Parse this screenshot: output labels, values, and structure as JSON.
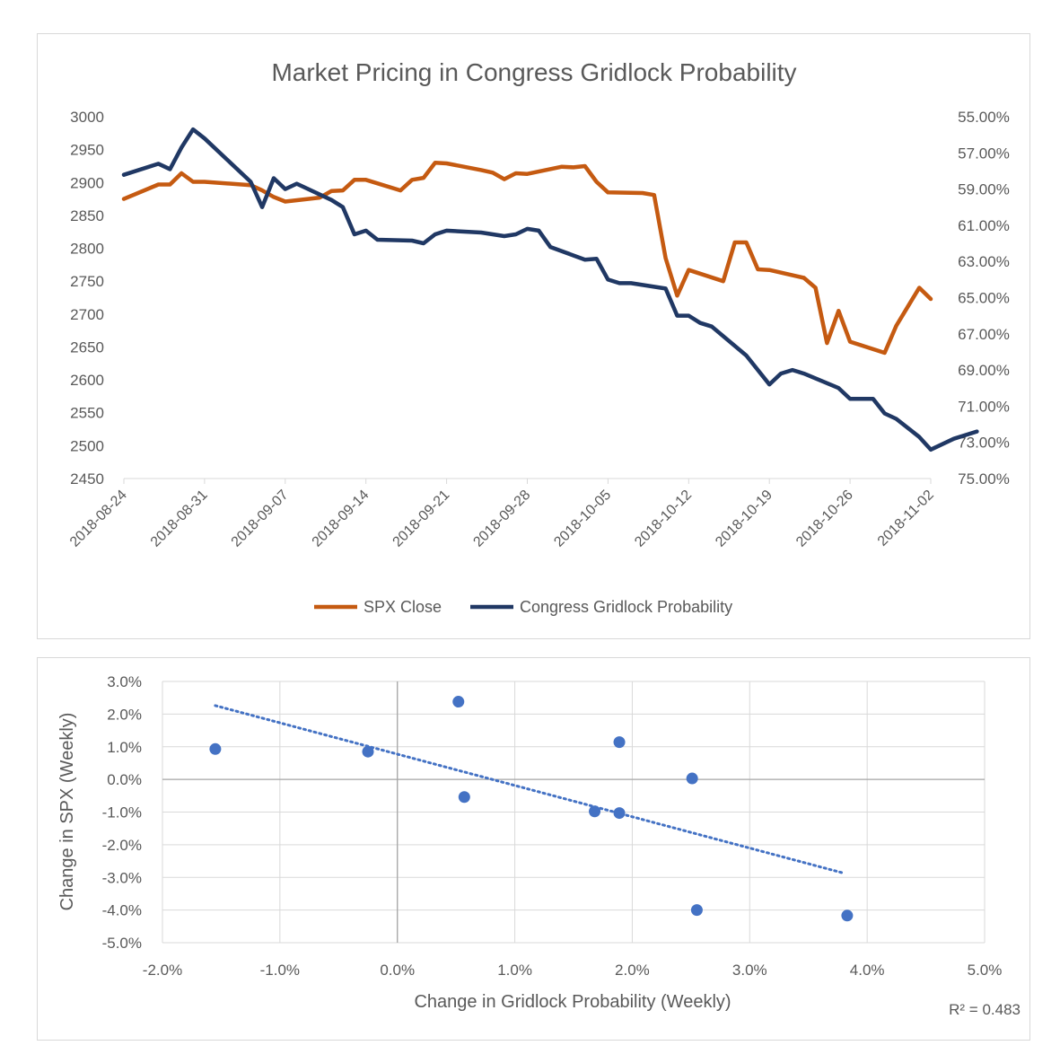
{
  "chart_data": [
    {
      "type": "line",
      "title": "Market Pricing in Congress Gridlock Probability",
      "x_ticks": [
        "2018-08-24",
        "2018-08-31",
        "2018-09-07",
        "2018-09-14",
        "2018-09-21",
        "2018-09-28",
        "2018-10-05",
        "2018-10-12",
        "2018-10-19",
        "2018-10-26",
        "2018-11-02"
      ],
      "y_left": {
        "min": 2450,
        "max": 3000,
        "step": 50,
        "ticks": [
          "3000",
          "2950",
          "2900",
          "2850",
          "2800",
          "2750",
          "2700",
          "2650",
          "2600",
          "2550",
          "2500",
          "2450"
        ]
      },
      "y_right": {
        "min": 0.55,
        "max": 0.75,
        "inverted": true,
        "ticks": [
          "55.00%",
          "57.00%",
          "59.00%",
          "61.00%",
          "63.00%",
          "65.00%",
          "67.00%",
          "69.00%",
          "71.00%",
          "73.00%",
          "75.00%"
        ]
      },
      "legend_position": "bottom",
      "series": [
        {
          "name": "SPX Close",
          "axis": "left",
          "color": "#C55A11",
          "points": [
            [
              "2018-08-24",
              2875
            ],
            [
              "2018-08-27",
              2897
            ],
            [
              "2018-08-28",
              2897
            ],
            [
              "2018-08-29",
              2914
            ],
            [
              "2018-08-30",
              2901
            ],
            [
              "2018-08-31",
              2901
            ],
            [
              "2018-09-04",
              2896
            ],
            [
              "2018-09-05",
              2888
            ],
            [
              "2018-09-06",
              2878
            ],
            [
              "2018-09-07",
              2871
            ],
            [
              "2018-09-10",
              2877
            ],
            [
              "2018-09-11",
              2887
            ],
            [
              "2018-09-12",
              2888
            ],
            [
              "2018-09-13",
              2904
            ],
            [
              "2018-09-14",
              2904
            ],
            [
              "2018-09-17",
              2888
            ],
            [
              "2018-09-18",
              2904
            ],
            [
              "2018-09-19",
              2907
            ],
            [
              "2018-09-20",
              2930
            ],
            [
              "2018-09-21",
              2929
            ],
            [
              "2018-09-24",
              2919
            ],
            [
              "2018-09-25",
              2915
            ],
            [
              "2018-09-26",
              2905
            ],
            [
              "2018-09-27",
              2914
            ],
            [
              "2018-09-28",
              2913
            ],
            [
              "2018-10-01",
              2924
            ],
            [
              "2018-10-02",
              2923
            ],
            [
              "2018-10-03",
              2925
            ],
            [
              "2018-10-04",
              2901
            ],
            [
              "2018-10-05",
              2885
            ],
            [
              "2018-10-08",
              2884
            ],
            [
              "2018-10-09",
              2881
            ],
            [
              "2018-10-10",
              2785
            ],
            [
              "2018-10-11",
              2728
            ],
            [
              "2018-10-12",
              2767
            ],
            [
              "2018-10-15",
              2750
            ],
            [
              "2018-10-16",
              2809
            ],
            [
              "2018-10-17",
              2809
            ],
            [
              "2018-10-18",
              2768
            ],
            [
              "2018-10-19",
              2767
            ],
            [
              "2018-10-22",
              2755
            ],
            [
              "2018-10-23",
              2740
            ],
            [
              "2018-10-24",
              2656
            ],
            [
              "2018-10-25",
              2705
            ],
            [
              "2018-10-26",
              2658
            ],
            [
              "2018-10-29",
              2641
            ],
            [
              "2018-10-30",
              2682
            ],
            [
              "2018-10-31",
              2711
            ],
            [
              "2018-11-01",
              2740
            ],
            [
              "2018-11-02",
              2723
            ]
          ]
        },
        {
          "name": "Congress Gridlock Probability",
          "axis": "right",
          "color": "#203864",
          "points": [
            [
              "2018-08-24",
              0.5821
            ],
            [
              "2018-08-27",
              0.576
            ],
            [
              "2018-08-28",
              0.579
            ],
            [
              "2018-08-29",
              0.567
            ],
            [
              "2018-08-30",
              0.557
            ],
            [
              "2018-08-31",
              0.562
            ],
            [
              "2018-09-04",
              0.586
            ],
            [
              "2018-09-05",
              0.6
            ],
            [
              "2018-09-06",
              0.584
            ],
            [
              "2018-09-07",
              0.59
            ],
            [
              "2018-09-08",
              0.587
            ],
            [
              "2018-09-11",
              0.596
            ],
            [
              "2018-09-12",
              0.6
            ],
            [
              "2018-09-13",
              0.615
            ],
            [
              "2018-09-14",
              0.613
            ],
            [
              "2018-09-15",
              0.618
            ],
            [
              "2018-09-18",
              0.6185
            ],
            [
              "2018-09-19",
              0.62
            ],
            [
              "2018-09-20",
              0.615
            ],
            [
              "2018-09-21",
              0.613
            ],
            [
              "2018-09-24",
              0.614
            ],
            [
              "2018-09-26",
              0.616
            ],
            [
              "2018-09-27",
              0.615
            ],
            [
              "2018-09-28",
              0.612
            ],
            [
              "2018-09-29",
              0.613
            ],
            [
              "2018-09-30",
              0.622
            ],
            [
              "2018-10-03",
              0.629
            ],
            [
              "2018-10-04",
              0.6285
            ],
            [
              "2018-10-05",
              0.64
            ],
            [
              "2018-10-06",
              0.642
            ],
            [
              "2018-10-07",
              0.642
            ],
            [
              "2018-10-10",
              0.645
            ],
            [
              "2018-10-11",
              0.66
            ],
            [
              "2018-10-12",
              0.66
            ],
            [
              "2018-10-13",
              0.664
            ],
            [
              "2018-10-14",
              0.666
            ],
            [
              "2018-10-17",
              0.682
            ],
            [
              "2018-10-19",
              0.698
            ],
            [
              "2018-10-20",
              0.692
            ],
            [
              "2018-10-21",
              0.69
            ],
            [
              "2018-10-22",
              0.692
            ],
            [
              "2018-10-25",
              0.7
            ],
            [
              "2018-10-26",
              0.706
            ],
            [
              "2018-10-27",
              0.706
            ],
            [
              "2018-10-28",
              0.706
            ],
            [
              "2018-10-29",
              0.714
            ],
            [
              "2018-10-30",
              0.717
            ],
            [
              "2018-11-01",
              0.727
            ],
            [
              "2018-11-02",
              0.734
            ],
            [
              "2018-11-04",
              0.728
            ],
            [
              "2018-11-06",
              0.724
            ]
          ]
        }
      ]
    },
    {
      "type": "scatter",
      "xlabel": "Change in Gridlock Probability (Weekly)",
      "ylabel": "Change in SPX (Weekly)",
      "xlim": [
        -0.02,
        0.05
      ],
      "ylim": [
        -0.05,
        0.03
      ],
      "x_ticks": [
        "-2.0%",
        "-1.0%",
        "0.0%",
        "1.0%",
        "2.0%",
        "3.0%",
        "4.0%",
        "5.0%"
      ],
      "y_ticks": [
        "3.0%",
        "2.0%",
        "1.0%",
        "0.0%",
        "-1.0%",
        "-2.0%",
        "-3.0%",
        "-4.0%",
        "-5.0%"
      ],
      "grid": true,
      "marker_color": "#4472C4",
      "points": [
        [
          -0.0155,
          0.0093
        ],
        [
          -0.0025,
          0.0085
        ],
        [
          0.0052,
          0.0238
        ],
        [
          0.0057,
          -0.0054
        ],
        [
          0.0168,
          -0.0098
        ],
        [
          0.0189,
          0.0114
        ],
        [
          0.0189,
          -0.0103
        ],
        [
          0.0251,
          0.0003
        ],
        [
          0.0255,
          -0.04
        ],
        [
          0.0383,
          -0.0417
        ]
      ],
      "trendline": {
        "style": "dotted",
        "x_start": -0.0155,
        "x_end": 0.038,
        "y_start": 0.0226,
        "y_end": -0.0287
      },
      "r_squared_label": "R² = 0.483"
    }
  ]
}
